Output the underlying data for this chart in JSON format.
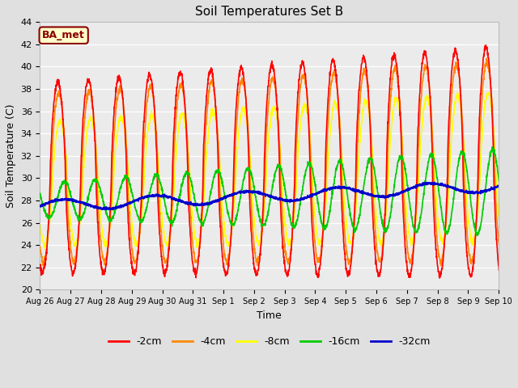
{
  "title": "Soil Temperatures Set B",
  "xlabel": "Time",
  "ylabel": "Soil Temperature (C)",
  "ylim": [
    20,
    44
  ],
  "fig_bg_color": "#e0e0e0",
  "plot_bg_color": "#ebebeb",
  "annotation_text": "BA_met",
  "annotation_bg": "#ffffcc",
  "annotation_border": "#8B0000",
  "annotation_text_color": "#8B0000",
  "lines": {
    "-2cm": {
      "color": "#ff0000",
      "lw": 1.2
    },
    "-4cm": {
      "color": "#ff8800",
      "lw": 1.2
    },
    "-8cm": {
      "color": "#ffff00",
      "lw": 1.2
    },
    "-16cm": {
      "color": "#00cc00",
      "lw": 1.2
    },
    "-32cm": {
      "color": "#0000cc",
      "lw": 1.5
    }
  },
  "legend_order": [
    "-2cm",
    "-4cm",
    "-8cm",
    "-16cm",
    "-32cm"
  ],
  "xtick_labels": [
    "Aug 26",
    "Aug 27",
    "Aug 28",
    "Aug 29",
    "Aug 30",
    "Aug 31",
    "Sep 1",
    "Sep 2",
    "Sep 3",
    "Sep 4",
    "Sep 5",
    "Sep 6",
    "Sep 7",
    "Sep 8",
    "Sep 9",
    "Sep 10"
  ],
  "n_days": 16
}
